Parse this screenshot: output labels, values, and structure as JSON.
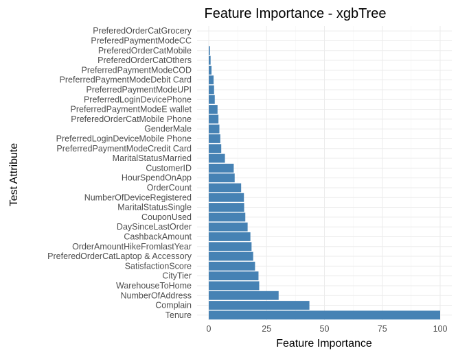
{
  "chart_data": {
    "type": "bar",
    "orientation": "horizontal",
    "title": "Feature Importance - xgbTree",
    "xlabel": "Feature Importance",
    "ylabel": "Test Attribute",
    "xlim": [
      0,
      100
    ],
    "xticks": [
      "0",
      "25",
      "50",
      "75",
      "100"
    ],
    "grid": true,
    "legend": "none",
    "bar_color": "#4682b4",
    "categories": [
      "PreferedOrderCatGrocery",
      "PreferedPaymentModeCC",
      "PreferedOrderCatMobile",
      "PreferedOrderCatOthers",
      "PreferredPaymentModeCOD",
      "PreferredPaymentModeDebit Card",
      "PreferredPaymentModeUPI",
      "PreferredLoginDevicePhone",
      "PreferredPaymentModeE wallet",
      "PreferedOrderCatMobile Phone",
      "GenderMale",
      "PreferredLoginDeviceMobile Phone",
      "PreferredPaymentModeCredit Card",
      "MaritalStatusMarried",
      "CustomerID",
      "HourSpendOnApp",
      "OrderCount",
      "NumberOfDeviceRegistered",
      "MaritalStatusSingle",
      "CouponUsed",
      "DaySinceLastOrder",
      "CashbackAmount",
      "OrderAmountHikeFromlastYear",
      "PreferedOrderCatLaptop & Accessory",
      "SatisfactionScore",
      "CityTier",
      "WarehouseToHome",
      "NumberOfAddress",
      "Complain",
      "Tenure"
    ],
    "values": [
      0,
      0,
      0.5,
      0.8,
      1.2,
      2.1,
      2.3,
      2.6,
      3.8,
      4.2,
      4.6,
      5.0,
      5.4,
      7.0,
      10.8,
      11.2,
      14.0,
      15.2,
      15.3,
      15.8,
      16.8,
      18.0,
      18.5,
      19.2,
      20.0,
      21.5,
      21.8,
      30.2,
      43.5,
      100
    ]
  }
}
